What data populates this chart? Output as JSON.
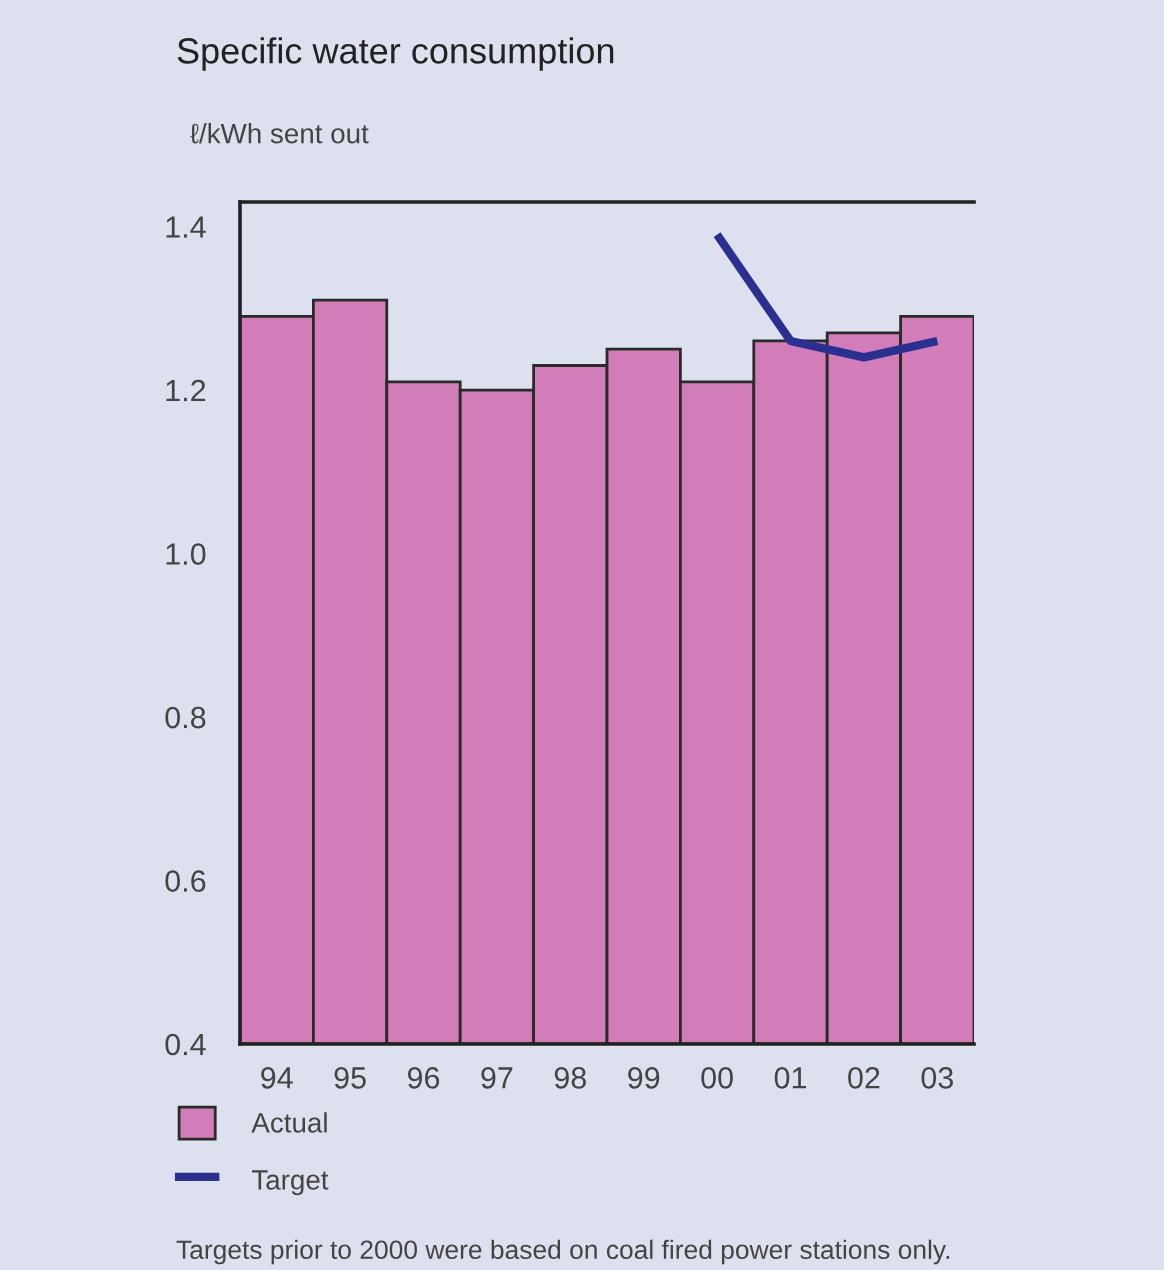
{
  "chart_data": {
    "type": "bar",
    "title": "Specific water consumption",
    "ylabel": "ℓ/kWh sent out",
    "categories": [
      "94",
      "95",
      "96",
      "97",
      "98",
      "99",
      "00",
      "01",
      "02",
      "03"
    ],
    "series": [
      {
        "name": "Actual",
        "color": "#d27dba",
        "values": [
          1.29,
          1.31,
          1.21,
          1.2,
          1.23,
          1.25,
          1.21,
          1.26,
          1.27,
          1.29
        ]
      },
      {
        "name": "Target",
        "type": "line",
        "color": "#2b2f8f",
        "values": [
          null,
          null,
          null,
          null,
          null,
          null,
          1.39,
          1.26,
          1.24,
          1.26
        ]
      }
    ],
    "ylim": [
      0.4,
      1.43
    ],
    "yticks": [
      0.4,
      0.6,
      0.8,
      {
        "value": 1.0,
        "label": "1.0"
      },
      1.2,
      1.4
    ],
    "legend": "bottom left",
    "marker": "none",
    "line_style": "solid",
    "annotations": [
      "Targets prior to 2000 were based on coal fired power stations only."
    ]
  }
}
